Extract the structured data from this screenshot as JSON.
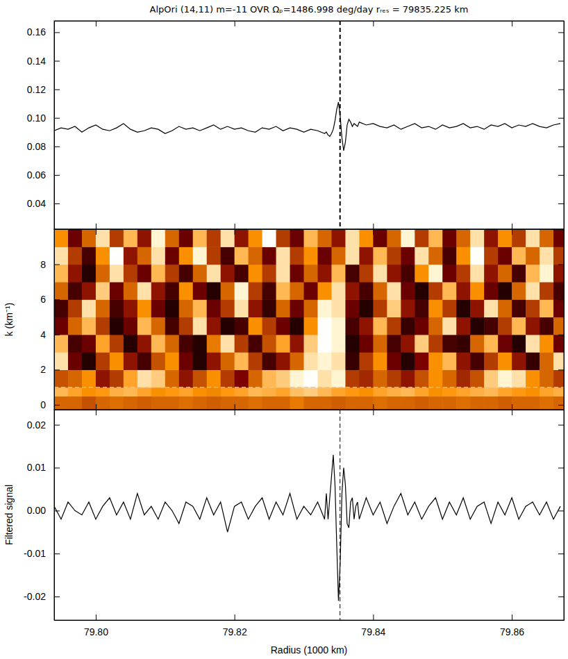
{
  "chart_data": [
    {
      "type": "line",
      "title": "AlpOri (14,11) m=-11 OVR Ωₚ=1486.998 deg/day rᵣₑₛ = 79835.225 km",
      "xlim": [
        79.794,
        79.8675
      ],
      "xticks": [
        {
          "value": 79.8,
          "label": "79.80"
        },
        79.82,
        79.84,
        79.86
      ],
      "ylim": [
        0.022,
        0.168
      ],
      "yticks": [
        0.04,
        0.06,
        0.08,
        {
          "value": 0.1,
          "label": "0.10"
        },
        0.12,
        0.14,
        0.16
      ],
      "tick_labels": "y",
      "vlines": [
        {
          "x": 79.835225,
          "line_style": "dashed",
          "color": "#000000"
        }
      ],
      "series": [
        {
          "color": "#000000",
          "x": [
            79.794,
            79.795,
            79.796,
            79.797,
            79.798,
            79.799,
            79.8,
            79.801,
            79.802,
            79.803,
            79.804,
            79.805,
            79.806,
            79.807,
            79.808,
            79.809,
            79.81,
            79.811,
            79.812,
            79.813,
            79.814,
            79.815,
            79.816,
            79.817,
            79.818,
            79.819,
            79.82,
            79.821,
            79.822,
            79.823,
            79.824,
            79.825,
            79.826,
            79.827,
            79.828,
            79.829,
            79.83,
            79.831,
            79.832,
            79.833,
            79.83325,
            79.8335,
            79.83375,
            79.834,
            79.83425,
            79.8345,
            79.83475,
            79.835,
            79.83525,
            79.8355,
            79.83575,
            79.836,
            79.83625,
            79.8365,
            79.83675,
            79.837,
            79.83725,
            79.8375,
            79.83775,
            79.838,
            79.839,
            79.84,
            79.841,
            79.842,
            79.843,
            79.844,
            79.845,
            79.846,
            79.847,
            79.848,
            79.849,
            79.85,
            79.851,
            79.852,
            79.853,
            79.854,
            79.855,
            79.856,
            79.857,
            79.858,
            79.859,
            79.86,
            79.861,
            79.862,
            79.863,
            79.864,
            79.865,
            79.866,
            79.867
          ],
          "values": [
            0.091,
            0.093,
            0.092,
            0.094,
            0.09,
            0.093,
            0.095,
            0.092,
            0.091,
            0.093,
            0.096,
            0.092,
            0.09,
            0.091,
            0.093,
            0.092,
            0.089,
            0.091,
            0.094,
            0.092,
            0.093,
            0.091,
            0.093,
            0.095,
            0.092,
            0.094,
            0.092,
            0.093,
            0.091,
            0.09,
            0.093,
            0.092,
            0.094,
            0.091,
            0.093,
            0.092,
            0.09,
            0.092,
            0.091,
            0.089,
            0.09,
            0.088,
            0.087,
            0.089,
            0.092,
            0.098,
            0.106,
            0.111,
            0.101,
            0.086,
            0.077,
            0.083,
            0.095,
            0.099,
            0.097,
            0.094,
            0.096,
            0.095,
            0.094,
            0.097,
            0.095,
            0.096,
            0.094,
            0.093,
            0.095,
            0.092,
            0.094,
            0.096,
            0.093,
            0.094,
            0.092,
            0.095,
            0.093,
            0.094,
            0.096,
            0.093,
            0.094,
            0.092,
            0.095,
            0.094,
            0.096,
            0.093,
            0.095,
            0.094,
            0.096,
            0.094,
            0.093,
            0.095,
            0.096
          ]
        }
      ]
    },
    {
      "type": "heatmap",
      "xlim": [
        79.794,
        79.8675
      ],
      "xticks": [
        {
          "value": 79.8,
          "label": "79.80"
        },
        79.82,
        79.84,
        79.86
      ],
      "ylim": [
        -0.28,
        10.0
      ],
      "yticks": [
        0,
        2,
        4,
        6,
        8
      ],
      "ylabel": "k (km⁻¹)",
      "tick_labels": "y",
      "zlim": [
        0,
        1
      ],
      "hlines": [
        {
          "y": 1.0,
          "line_style": "dashed",
          "color": "#cccccc"
        }
      ],
      "x_edges": [
        79.794,
        79.796,
        79.798,
        79.8,
        79.802,
        79.804,
        79.806,
        79.808,
        79.81,
        79.812,
        79.814,
        79.816,
        79.818,
        79.82,
        79.822,
        79.824,
        79.826,
        79.828,
        79.83,
        79.832,
        79.834,
        79.836,
        79.838,
        79.84,
        79.842,
        79.844,
        79.846,
        79.848,
        79.85,
        79.852,
        79.854,
        79.856,
        79.858,
        79.86,
        79.862,
        79.864,
        79.866,
        79.868
      ],
      "y_edges": [
        -0.3,
        0.5,
        1.0,
        2,
        3,
        4,
        5,
        6,
        7,
        8,
        9,
        10
      ],
      "z": [
        [
          0.6,
          0.6,
          0.55,
          0.6,
          0.62,
          0.6,
          0.58,
          0.6,
          0.6,
          0.62,
          0.6,
          0.58,
          0.6,
          0.6,
          0.62,
          0.6,
          0.6,
          0.65,
          0.6,
          0.6,
          0.58,
          0.6,
          0.6,
          0.62,
          0.6,
          0.6,
          0.58,
          0.6,
          0.6,
          0.62,
          0.6,
          0.6,
          0.58,
          0.6,
          0.6,
          0.62,
          0.6
        ],
        [
          0.8,
          0.75,
          0.7,
          0.72,
          0.78,
          0.8,
          0.75,
          0.7,
          0.72,
          0.75,
          0.7,
          0.68,
          0.72,
          0.75,
          0.8,
          0.78,
          0.75,
          0.82,
          0.85,
          0.8,
          0.75,
          0.72,
          0.7,
          0.75,
          0.78,
          0.8,
          0.75,
          0.7,
          0.72,
          0.75,
          0.78,
          0.8,
          0.75,
          0.72,
          0.7,
          0.75,
          0.78
        ],
        [
          0.55,
          0.6,
          0.7,
          0.4,
          0.5,
          0.75,
          0.9,
          0.85,
          0.6,
          0.4,
          0.55,
          0.7,
          0.5,
          0.35,
          0.6,
          0.8,
          0.85,
          0.95,
          1.0,
          0.9,
          0.95,
          0.5,
          0.45,
          0.6,
          0.5,
          0.4,
          0.55,
          0.7,
          0.6,
          0.45,
          0.55,
          0.85,
          0.95,
          0.9,
          0.7,
          0.6,
          0.5
        ],
        [
          0.9,
          0.3,
          0.1,
          0.5,
          0.7,
          0.4,
          0.2,
          0.55,
          0.7,
          0.3,
          0.1,
          0.4,
          0.6,
          0.8,
          0.5,
          0.2,
          0.4,
          0.6,
          0.9,
          0.95,
          0.9,
          0.15,
          0.5,
          0.7,
          0.3,
          0.1,
          0.35,
          0.7,
          0.8,
          0.4,
          0.2,
          0.5,
          0.7,
          0.4,
          0.15,
          0.6,
          0.9
        ],
        [
          0.8,
          0.2,
          0.3,
          0.75,
          0.5,
          0.1,
          0.4,
          0.8,
          0.6,
          0.2,
          0.1,
          0.65,
          0.9,
          0.5,
          0.2,
          0.55,
          0.75,
          0.4,
          0.85,
          1.0,
          0.95,
          0.1,
          0.3,
          0.6,
          0.2,
          0.4,
          0.85,
          0.5,
          0.2,
          0.15,
          0.6,
          0.8,
          0.3,
          0.1,
          0.9,
          0.7,
          0.3
        ],
        [
          0.3,
          0.6,
          0.8,
          0.5,
          0.1,
          0.3,
          0.8,
          0.6,
          0.2,
          0.5,
          0.9,
          0.4,
          0.1,
          0.2,
          0.7,
          0.5,
          0.3,
          0.1,
          0.7,
          1.0,
          0.95,
          0.2,
          0.4,
          0.8,
          0.5,
          0.15,
          0.3,
          0.6,
          0.9,
          0.4,
          0.1,
          0.2,
          0.5,
          0.8,
          0.4,
          0.2,
          0.6
        ],
        [
          0.2,
          0.5,
          0.9,
          0.6,
          0.2,
          0.4,
          0.7,
          0.3,
          0.1,
          0.6,
          0.8,
          0.3,
          0.5,
          0.9,
          0.4,
          0.15,
          0.6,
          0.3,
          0.6,
          0.95,
          0.9,
          0.3,
          0.1,
          0.5,
          0.85,
          0.4,
          0.2,
          0.7,
          0.5,
          0.1,
          0.4,
          0.9,
          0.6,
          0.2,
          0.5,
          0.8,
          0.3
        ],
        [
          0.6,
          0.2,
          0.4,
          0.85,
          0.3,
          0.6,
          0.9,
          0.4,
          0.2,
          0.7,
          0.3,
          0.1,
          0.6,
          0.95,
          0.5,
          0.2,
          0.8,
          0.6,
          0.3,
          0.7,
          0.9,
          0.4,
          0.2,
          0.6,
          0.9,
          0.3,
          0.1,
          0.5,
          0.8,
          0.4,
          0.7,
          0.3,
          0.1,
          0.6,
          0.9,
          0.5,
          0.2
        ],
        [
          0.8,
          0.4,
          0.1,
          0.6,
          0.9,
          0.5,
          0.3,
          0.8,
          0.5,
          0.2,
          0.6,
          0.9,
          0.4,
          0.2,
          0.7,
          0.5,
          0.9,
          0.3,
          0.6,
          0.4,
          0.8,
          0.2,
          0.5,
          0.9,
          0.4,
          0.2,
          0.7,
          0.95,
          0.3,
          0.5,
          0.9,
          0.4,
          0.6,
          0.2,
          0.8,
          0.95,
          0.4
        ],
        [
          0.9,
          0.5,
          0.2,
          0.7,
          1.0,
          0.4,
          0.6,
          0.9,
          0.3,
          0.7,
          0.95,
          0.5,
          0.2,
          0.8,
          0.6,
          0.3,
          0.9,
          0.5,
          0.7,
          0.3,
          0.6,
          0.9,
          0.4,
          0.8,
          0.5,
          0.3,
          0.9,
          0.6,
          0.2,
          0.7,
          1.0,
          0.5,
          0.3,
          0.8,
          0.6,
          0.9,
          0.5
        ],
        [
          0.7,
          0.3,
          0.6,
          0.9,
          0.5,
          0.8,
          0.4,
          0.95,
          0.6,
          0.3,
          0.8,
          0.5,
          0.9,
          0.4,
          0.7,
          1.0,
          0.5,
          0.3,
          0.8,
          0.6,
          0.4,
          0.9,
          0.7,
          0.3,
          0.6,
          0.95,
          0.5,
          0.8,
          0.3,
          0.6,
          0.9,
          0.4,
          0.7,
          0.5,
          0.9,
          0.6,
          0.3
        ]
      ]
    },
    {
      "type": "line",
      "xlim": [
        79.794,
        79.8675
      ],
      "xticks": [
        {
          "value": 79.8,
          "label": "79.80"
        },
        79.82,
        79.84,
        79.86
      ],
      "xlabel": "Radius (1000 km)",
      "ylim": [
        -0.0255,
        0.0235
      ],
      "yticks": [
        -0.02,
        -0.01,
        {
          "value": 0,
          "label": "0.00"
        },
        0.01,
        0.02
      ],
      "ylabel": "Filtered signal",
      "tick_labels": true,
      "vlines": [
        {
          "x": 79.835225,
          "line_style": "dashed",
          "color": "#000000"
        }
      ],
      "series": [
        {
          "color": "#000000",
          "x": [
            79.794,
            79.795,
            79.796,
            79.797,
            79.798,
            79.799,
            79.8,
            79.801,
            79.802,
            79.803,
            79.804,
            79.805,
            79.806,
            79.807,
            79.808,
            79.809,
            79.81,
            79.811,
            79.812,
            79.813,
            79.814,
            79.815,
            79.816,
            79.817,
            79.818,
            79.819,
            79.82,
            79.821,
            79.822,
            79.823,
            79.824,
            79.825,
            79.826,
            79.827,
            79.828,
            79.829,
            79.83,
            79.831,
            79.832,
            79.833,
            79.83325,
            79.8335,
            79.83375,
            79.834,
            79.83425,
            79.8345,
            79.83475,
            79.835,
            79.83525,
            79.8355,
            79.83575,
            79.836,
            79.83625,
            79.8365,
            79.83675,
            79.837,
            79.83725,
            79.8375,
            79.83775,
            79.838,
            79.839,
            79.84,
            79.841,
            79.842,
            79.843,
            79.844,
            79.845,
            79.846,
            79.847,
            79.848,
            79.849,
            79.85,
            79.851,
            79.852,
            79.853,
            79.854,
            79.855,
            79.856,
            79.857,
            79.858,
            79.859,
            79.86,
            79.861,
            79.862,
            79.863,
            79.864,
            79.865,
            79.866,
            79.867
          ],
          "values": [
            0.001,
            -0.002,
            0.002,
            0.0,
            -0.001,
            0.002,
            -0.002,
            0.001,
            0.003,
            -0.001,
            0.002,
            -0.002,
            0.004,
            -0.001,
            0.001,
            -0.002,
            0.002,
            0.0,
            -0.003,
            0.002,
            0.001,
            -0.002,
            0.003,
            -0.001,
            0.002,
            -0.005,
            0.001,
            0.002,
            -0.002,
            0.001,
            0.003,
            -0.002,
            0.002,
            -0.001,
            0.004,
            -0.002,
            0.001,
            -0.001,
            0.002,
            -0.002,
            0.004,
            -0.002,
            0.003,
            0.008,
            0.013,
            0.006,
            -0.008,
            -0.021,
            -0.012,
            0.004,
            0.01,
            0.006,
            -0.003,
            -0.004,
            0.002,
            0.003,
            -0.002,
            0.001,
            0.002,
            -0.002,
            0.003,
            -0.001,
            0.002,
            -0.003,
            0.001,
            0.004,
            -0.001,
            0.002,
            -0.002,
            0.001,
            0.003,
            -0.002,
            0.002,
            -0.001,
            0.003,
            -0.002,
            0.001,
            0.002,
            -0.003,
            0.002,
            -0.001,
            0.003,
            -0.002,
            0.001,
            0.002,
            -0.001,
            0.002,
            -0.002,
            0.001
          ]
        }
      ]
    }
  ]
}
